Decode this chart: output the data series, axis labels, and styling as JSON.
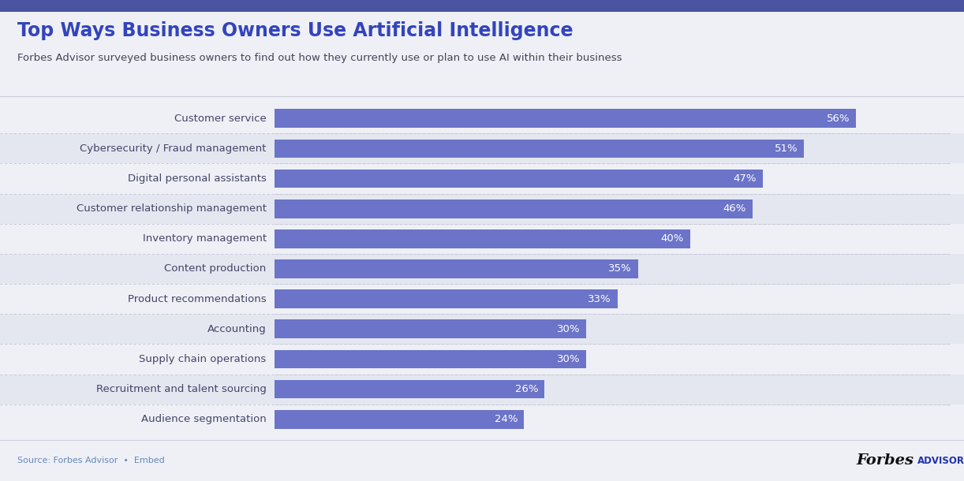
{
  "title": "Top Ways Business Owners Use Artificial Intelligence",
  "subtitle": "Forbes Advisor surveyed business owners to find out how they currently use or plan to use AI within their business",
  "categories": [
    "Customer service",
    "Cybersecurity / Fraud management",
    "Digital personal assistants",
    "Customer relationship management",
    "Inventory management",
    "Content production",
    "Product recommendations",
    "Accounting",
    "Supply chain operations",
    "Recruitment and talent sourcing",
    "Audience segmentation"
  ],
  "values": [
    56,
    51,
    47,
    46,
    40,
    35,
    33,
    30,
    30,
    26,
    24
  ],
  "bar_color": "#6b74c8",
  "bg_color": "#eef0f6",
  "title_color": "#3344bb",
  "subtitle_color": "#444455",
  "label_color": "#444466",
  "value_color": "#ffffff",
  "source_text": "Source: Forbes Advisor  •  Embed",
  "footer_text_color": "#6688bb",
  "bar_height": 0.62,
  "xlim": [
    0,
    65
  ],
  "row_colors": [
    "#eef0f6",
    "#e4e7f0"
  ],
  "separator_color": "#c8cad8",
  "top_stripe_color": "#4a54a0",
  "forbes_italic_color": "#111111",
  "forbes_advisor_color": "#2233aa"
}
